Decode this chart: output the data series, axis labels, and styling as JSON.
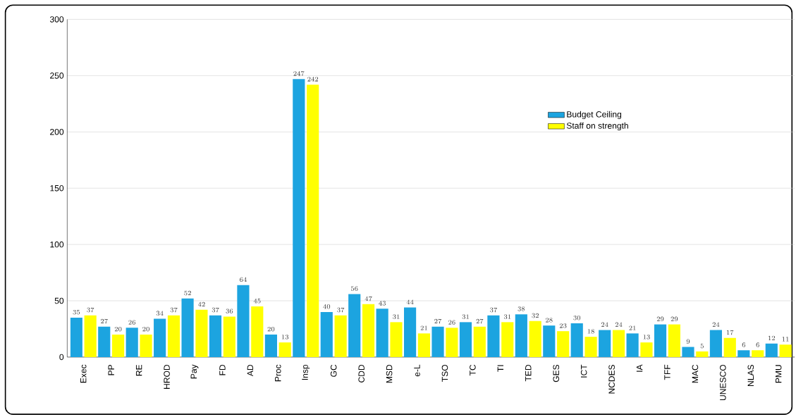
{
  "chart_data": {
    "type": "bar",
    "categories": [
      "Exec",
      "PP",
      "RE",
      "HROD",
      "Pay",
      "FD",
      "AD",
      "Proc",
      "Insp",
      "GC",
      "CDD",
      "MSD",
      "e-L",
      "TSO",
      "TC",
      "TI",
      "TED",
      "GES",
      "ICT",
      "NCDES",
      "IA",
      "TFF",
      "MAC",
      "UNESCO",
      "NLAS",
      "PMU"
    ],
    "series": [
      {
        "name": "Budget Ceiling",
        "color": "#1ca4e0",
        "values": [
          35,
          27,
          26,
          34,
          52,
          37,
          64,
          20,
          247,
          40,
          56,
          43,
          44,
          27,
          31,
          37,
          38,
          28,
          30,
          24,
          21,
          29,
          9,
          24,
          6,
          12
        ]
      },
      {
        "name": "Staff on strength",
        "color": "#ffff00",
        "values": [
          37,
          20,
          20,
          37,
          42,
          36,
          45,
          13,
          242,
          37,
          47,
          31,
          21,
          26,
          27,
          31,
          32,
          23,
          18,
          24,
          13,
          29,
          5,
          17,
          6,
          11
        ]
      }
    ],
    "ylim": [
      0,
      300
    ],
    "yticks": [
      0,
      50,
      100,
      150,
      200,
      250,
      300
    ],
    "grid": "y",
    "legend": "right",
    "data_labels": true
  }
}
